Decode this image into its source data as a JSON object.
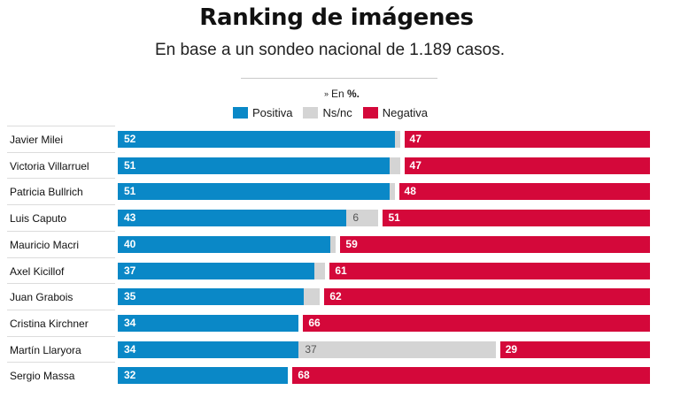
{
  "chart_data": {
    "type": "bar",
    "orientation": "horizontal-stacked",
    "title": "Ranking de imágenes",
    "subtitle": "En base a un sondeo nacional de 1.189 casos.",
    "unit_note": {
      "bullet": "»",
      "prefix": "En",
      "unit": "%."
    },
    "legend": [
      {
        "name": "Positiva",
        "color": "#0a88c7"
      },
      {
        "name": "Ns/nc",
        "color": "#d4d4d4"
      },
      {
        "name": "Negativa",
        "color": "#d4083a"
      }
    ],
    "categories": [
      "Javier Milei",
      "Victoria Villarruel",
      "Patricia Bullrich",
      "Luis Caputo",
      "Mauricio Macri",
      "Axel Kicillof",
      "Juan Grabois",
      "Cristina Kirchner",
      "Martín Llaryora",
      "Sergio Massa"
    ],
    "series": [
      {
        "name": "Positiva",
        "values": [
          52,
          51,
          51,
          43,
          40,
          37,
          35,
          34,
          34,
          32
        ]
      },
      {
        "name": "Ns/nc",
        "values": [
          1,
          2,
          1,
          6,
          1,
          2,
          3,
          0,
          37,
          0
        ]
      },
      {
        "name": "Negativa",
        "values": [
          47,
          47,
          48,
          51,
          59,
          61,
          62,
          66,
          29,
          68
        ]
      }
    ],
    "shown_labels": {
      "Positiva": [
        true,
        true,
        true,
        true,
        true,
        true,
        true,
        true,
        true,
        true
      ],
      "Ns/nc": [
        false,
        false,
        false,
        true,
        false,
        false,
        false,
        false,
        true,
        false
      ],
      "Negativa": [
        true,
        true,
        true,
        true,
        true,
        true,
        true,
        true,
        true,
        true
      ]
    },
    "xlim": [
      0,
      100
    ]
  }
}
